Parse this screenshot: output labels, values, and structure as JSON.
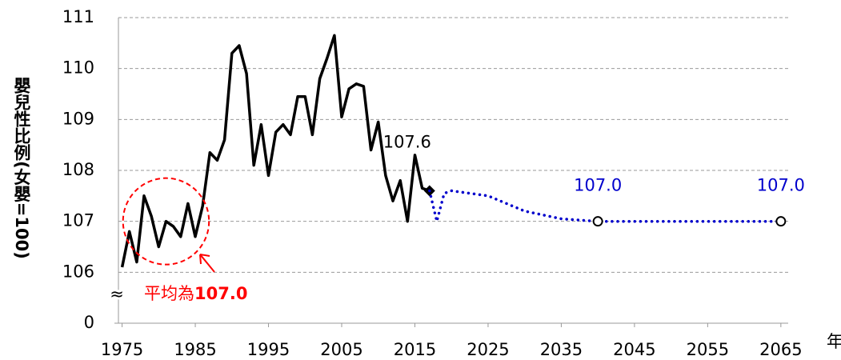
{
  "chart_data": {
    "type": "line",
    "y_label": "嬰兒性比例(女嬰=100)",
    "x_label": "年",
    "axis_break_label": "≈",
    "xlim": [
      1974.5,
      2066
    ],
    "xticks": [
      1975,
      1985,
      1995,
      2005,
      2015,
      2025,
      2035,
      2045,
      2055,
      2065
    ],
    "ylim": [
      0,
      111
    ],
    "yticks": [
      0,
      106,
      107,
      108,
      109,
      110,
      111
    ],
    "grid": true,
    "series": [
      {
        "name": "actual",
        "color": "#000000",
        "style": "solid",
        "x": [
          1975,
          1976,
          1977,
          1978,
          1979,
          1980,
          1981,
          1982,
          1983,
          1984,
          1985,
          1986,
          1987,
          1988,
          1989,
          1990,
          1991,
          1992,
          1993,
          1994,
          1995,
          1996,
          1997,
          1998,
          1999,
          2000,
          2001,
          2002,
          2003,
          2004,
          2005,
          2006,
          2007,
          2008,
          2009,
          2010,
          2011,
          2012,
          2013,
          2014,
          2015,
          2016,
          2017
        ],
        "values": [
          106.1,
          106.8,
          106.2,
          107.5,
          107.1,
          106.5,
          107.0,
          106.9,
          106.7,
          107.35,
          106.7,
          107.3,
          108.35,
          108.2,
          108.6,
          110.3,
          110.45,
          109.9,
          108.1,
          108.9,
          107.9,
          108.75,
          108.9,
          108.7,
          109.45,
          109.45,
          108.7,
          109.8,
          110.2,
          110.65,
          109.05,
          109.6,
          109.7,
          109.65,
          108.4,
          108.95,
          107.9,
          107.4,
          107.8,
          107.0,
          108.3,
          107.65,
          107.6
        ]
      },
      {
        "name": "projection",
        "color": "#0000cc",
        "style": "dotted",
        "x": [
          2017,
          2018,
          2019,
          2020,
          2025,
          2030,
          2035,
          2040,
          2045,
          2050,
          2055,
          2060,
          2065
        ],
        "values": [
          107.6,
          107.0,
          107.55,
          107.6,
          107.5,
          107.2,
          107.05,
          107.0,
          107.0,
          107.0,
          107.0,
          107.0,
          107.0
        ],
        "value_labels": [
          null,
          null,
          null,
          null,
          null,
          null,
          null,
          "107.0",
          null,
          null,
          null,
          null,
          "107.0"
        ]
      }
    ],
    "annotation": {
      "text": "平均為",
      "value": 107,
      "value_label": "107.0",
      "color": "#ff0000",
      "x_range": [
        1976,
        1986
      ]
    }
  }
}
